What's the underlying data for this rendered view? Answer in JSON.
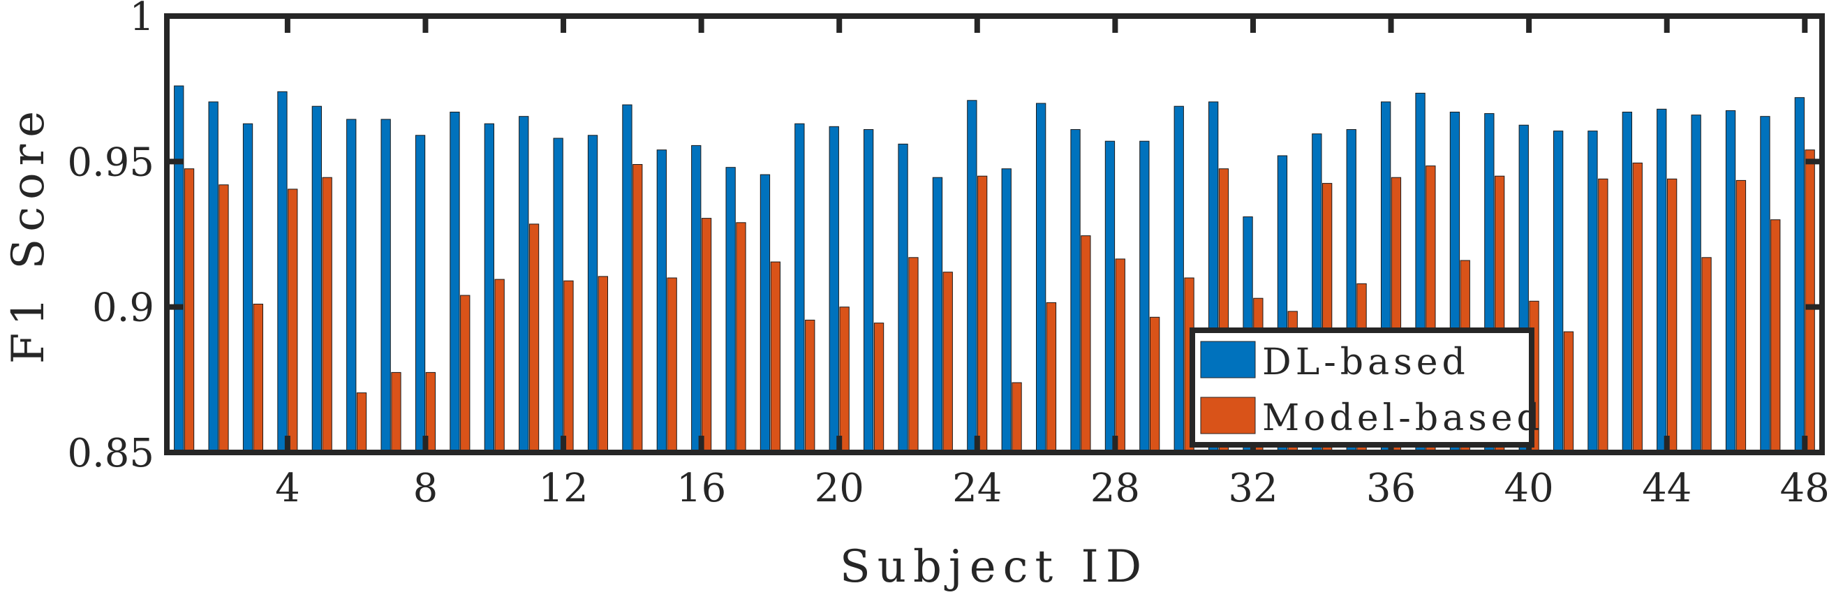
{
  "chart_data": {
    "type": "bar",
    "title": "",
    "xlabel": "Subject ID",
    "ylabel": "F1 Score",
    "ylim": [
      0.85,
      1
    ],
    "yticks": [
      "0.85",
      "0.9",
      "0.95",
      "1"
    ],
    "xticks": [
      "4",
      "8",
      "12",
      "16",
      "20",
      "24",
      "28",
      "32",
      "36",
      "40",
      "44",
      "48"
    ],
    "legend_position": "bottom-right",
    "grid": false,
    "categories": [
      1,
      2,
      3,
      4,
      5,
      6,
      7,
      8,
      9,
      10,
      11,
      12,
      13,
      14,
      15,
      16,
      17,
      18,
      19,
      20,
      21,
      22,
      23,
      24,
      25,
      26,
      27,
      28,
      29,
      30,
      31,
      32,
      33,
      34,
      35,
      36,
      37,
      38,
      39,
      40,
      41,
      42,
      43,
      44,
      45,
      46,
      47,
      48
    ],
    "series": [
      {
        "name": "DL-based",
        "color": "#0072BD",
        "values": [
          0.976,
          0.9705,
          0.963,
          0.974,
          0.969,
          0.9645,
          0.9645,
          0.959,
          0.967,
          0.963,
          0.9655,
          0.958,
          0.959,
          0.9695,
          0.954,
          0.9555,
          0.948,
          0.9455,
          0.963,
          0.962,
          0.961,
          0.956,
          0.9445,
          0.971,
          0.9475,
          0.97,
          0.961,
          0.957,
          0.957,
          0.969,
          0.9705,
          0.931,
          0.952,
          0.9595,
          0.961,
          0.9705,
          0.9735,
          0.967,
          0.9665,
          0.9625,
          0.9605,
          0.9605,
          0.967,
          0.968,
          0.966,
          0.9675,
          0.9655,
          0.972
        ]
      },
      {
        "name": "Model-based",
        "color": "#D95319",
        "values": [
          0.9475,
          0.942,
          0.901,
          0.9405,
          0.9445,
          0.8705,
          0.8775,
          0.8775,
          0.904,
          0.9095,
          0.9285,
          0.909,
          0.9105,
          0.949,
          0.91,
          0.9305,
          0.929,
          0.9155,
          0.8955,
          0.9,
          0.8945,
          0.917,
          0.912,
          0.945,
          0.874,
          0.9015,
          0.9245,
          0.9165,
          0.8965,
          0.91,
          0.9475,
          0.903,
          0.8985,
          0.9425,
          0.908,
          0.9445,
          0.9485,
          0.916,
          0.945,
          0.902,
          0.8915,
          0.944,
          0.9495,
          0.944,
          0.917,
          0.9435,
          0.93,
          0.954
        ]
      }
    ]
  }
}
